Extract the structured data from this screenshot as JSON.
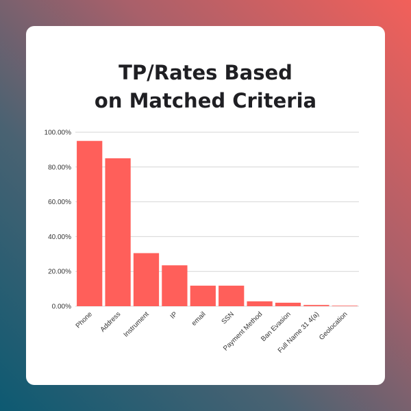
{
  "chart_data": {
    "type": "bar",
    "title_lines": [
      "TP/Rates Based",
      "on Matched Criteria"
    ],
    "categories": [
      "Phone",
      "Address",
      "Instrument",
      "IP",
      "email",
      "SSN",
      "Payment Method",
      "Ban Evasion",
      "Full Name 31 4(a)",
      "Geolocation"
    ],
    "values": [
      95,
      85,
      30.5,
      23.5,
      11.8,
      11.8,
      2.8,
      2.0,
      0.7,
      0.3
    ],
    "y_ticks": [
      "0.00%",
      "20.00%",
      "40.00%",
      "60.00%",
      "80.00%",
      "100.00%"
    ],
    "ylim": [
      0,
      100
    ],
    "grid": true,
    "bar_color": "#ff5f5a",
    "grid_color": "#d6d6d6"
  }
}
